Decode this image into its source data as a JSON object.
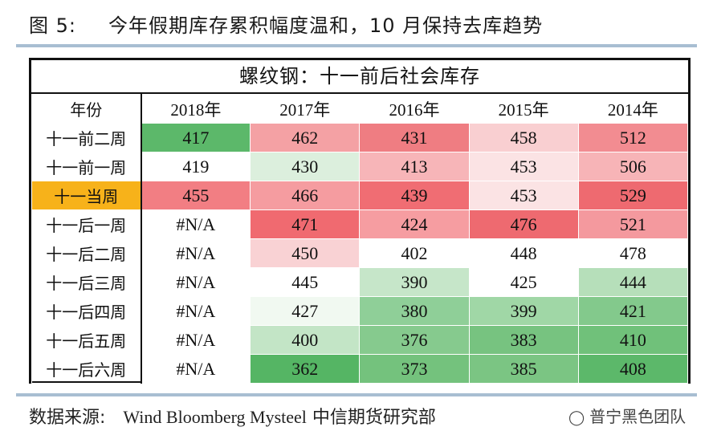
{
  "figure": {
    "label": "图 5:",
    "title": "今年假期库存累积幅度温和，10 月保持去库趋势"
  },
  "source": {
    "label": "数据来源:",
    "names": "Wind Bloomberg Mysteel",
    "org": "中信期货研究部"
  },
  "watermark": "普宁黑色团队",
  "chart_data": {
    "type": "table",
    "title": "螺纹钢：十一前后社会库存",
    "corner_label": "年份",
    "columns": [
      "2018年",
      "2017年",
      "2016年",
      "2015年",
      "2014年"
    ],
    "rows": [
      {
        "label": "十一前二周",
        "values": [
          "417",
          "462",
          "431",
          "458",
          "512"
        ]
      },
      {
        "label": "十一前一周",
        "values": [
          "419",
          "430",
          "413",
          "453",
          "506"
        ]
      },
      {
        "label": "十一当周",
        "values": [
          "455",
          "466",
          "439",
          "453",
          "529"
        ],
        "highlight": true
      },
      {
        "label": "十一后一周",
        "values": [
          "#N/A",
          "471",
          "424",
          "476",
          "521"
        ]
      },
      {
        "label": "十一后二周",
        "values": [
          "#N/A",
          "450",
          "402",
          "448",
          "478"
        ]
      },
      {
        "label": "十一后三周",
        "values": [
          "#N/A",
          "445",
          "390",
          "425",
          "444"
        ]
      },
      {
        "label": "十一后四周",
        "values": [
          "#N/A",
          "427",
          "380",
          "399",
          "421"
        ]
      },
      {
        "label": "十一后五周",
        "values": [
          "#N/A",
          "400",
          "376",
          "383",
          "410"
        ]
      },
      {
        "label": "十一后六周",
        "values": [
          "#N/A",
          "362",
          "373",
          "385",
          "408"
        ]
      }
    ],
    "cell_colors": [
      [
        "#5cb86a",
        "#f4a1a4",
        "#ef7d82",
        "#f9cfd1",
        "#f28c91"
      ],
      [
        "#ffffff",
        "#dcefdd",
        "#f7b5b8",
        "#fbe3e4",
        "#f7b4b7"
      ],
      [
        "#f27e83",
        "#f59ca0",
        "#f06d73",
        "#fbe3e4",
        "#ee6a70"
      ],
      [
        "#ffffff",
        "#f06a70",
        "#f69da1",
        "#ee6a70",
        "#f4999e"
      ],
      [
        "#ffffff",
        "#f9d2d4",
        "#ffffff",
        "#ffffff",
        "#ffffff"
      ],
      [
        "#ffffff",
        "#ffffff",
        "#c6e6c9",
        "#ffffff",
        "#b6dfba"
      ],
      [
        "#ffffff",
        "#f1f9f1",
        "#8fcf98",
        "#a0d7a6",
        "#83c98c"
      ],
      [
        "#ffffff",
        "#c3e5c6",
        "#86ca8e",
        "#77c380",
        "#70c17a"
      ],
      [
        "#ffffff",
        "#55b564",
        "#74c27d",
        "#7bc583",
        "#5cb86a"
      ]
    ],
    "row_label_highlight_color": "#f7b21a"
  }
}
